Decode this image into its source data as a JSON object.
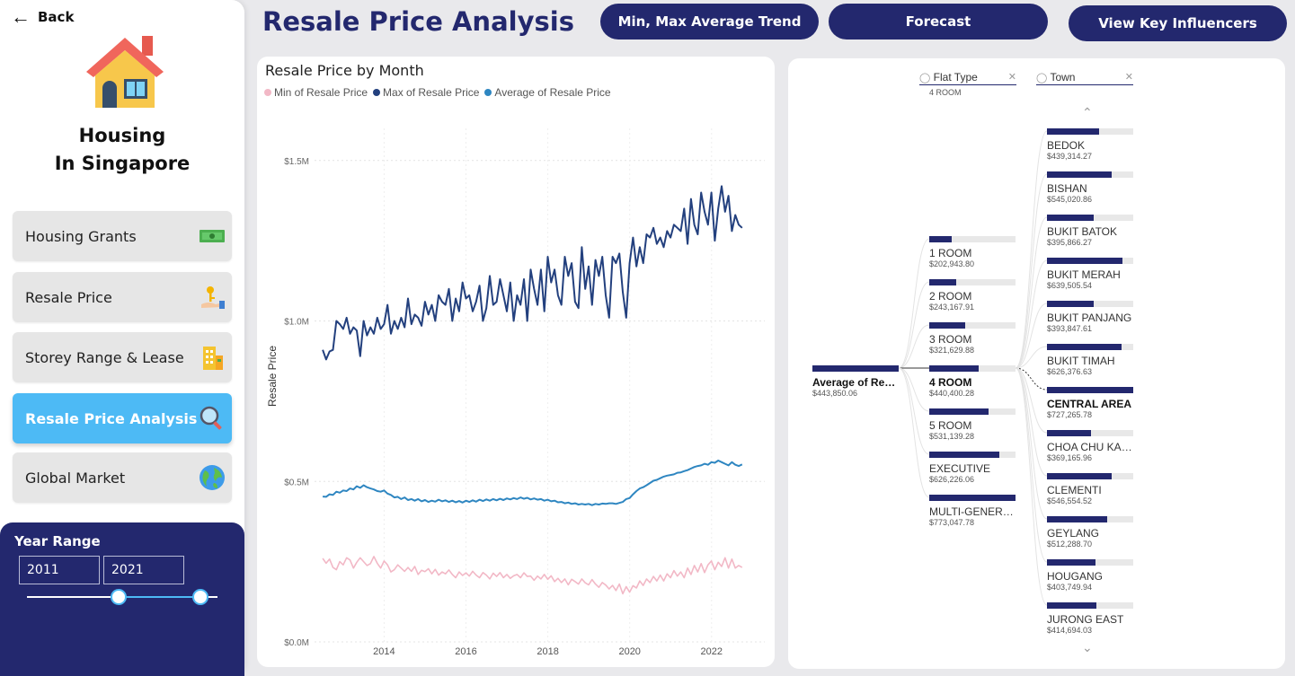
{
  "sidebar": {
    "back_label": "Back",
    "brand_line1": "Housing",
    "brand_line2": "In Singapore",
    "nav": [
      {
        "label": "Housing Grants",
        "icon": "money-icon"
      },
      {
        "label": "Resale Price",
        "icon": "key-hand-icon"
      },
      {
        "label": "Storey Range & Lease",
        "icon": "building-icon"
      },
      {
        "label": "Resale Price Analysis",
        "icon": "magnifier-icon",
        "active": true
      },
      {
        "label": "Global Market",
        "icon": "globe-icon"
      }
    ],
    "year_range": {
      "title": "Year Range",
      "from": "2011",
      "to": "2021"
    }
  },
  "header": {
    "title": "Resale Price Analysis",
    "buttons": [
      "Min, Max Average Trend",
      "Forecast",
      "View Key Influencers"
    ]
  },
  "chart_data": {
    "type": "line",
    "title": "Resale Price by Month",
    "ylabel": "Resale Price",
    "xlabel": "",
    "legend_position": "top-left",
    "ylim": [
      0,
      1600000
    ],
    "yticks": [
      {
        "v": 0,
        "label": "$0.0M"
      },
      {
        "v": 500000,
        "label": "$0.5M"
      },
      {
        "v": 1000000,
        "label": "$1.0M"
      },
      {
        "v": 1500000,
        "label": "$1.5M"
      }
    ],
    "xticks": [
      {
        "v": 2014,
        "label": "2014"
      },
      {
        "v": 2016,
        "label": "2016"
      },
      {
        "v": 2018,
        "label": "2018"
      },
      {
        "v": 2020,
        "label": "2020"
      },
      {
        "v": 2022,
        "label": "2022"
      }
    ],
    "xlim": [
      2012.3,
      2023.3
    ],
    "x_start": 2012.5,
    "x_step": 0.0833,
    "grid": true,
    "series": [
      {
        "name": "Min of Resale Price",
        "color": "#f2b8c6",
        "values": [
          260000,
          245000,
          258000,
          232000,
          225000,
          250000,
          240000,
          262000,
          255000,
          230000,
          248000,
          262000,
          250000,
          238000,
          244000,
          266000,
          245000,
          230000,
          252000,
          240000,
          218000,
          225000,
          240000,
          230000,
          220000,
          232000,
          220000,
          235000,
          210000,
          223000,
          219000,
          228000,
          212000,
          226000,
          208000,
          218000,
          212000,
          224000,
          210000,
          200000,
          218000,
          207000,
          215000,
          205000,
          220000,
          208000,
          200000,
          216000,
          208000,
          196000,
          214000,
          204000,
          216000,
          200000,
          210000,
          198000,
          206000,
          210000,
          200000,
          215000,
          204000,
          205000,
          192000,
          205000,
          196000,
          210000,
          195000,
          206000,
          188000,
          198000,
          185000,
          196000,
          178000,
          195000,
          188000,
          180000,
          196000,
          184000,
          178000,
          194000,
          180000,
          170000,
          185000,
          177000,
          165000,
          176000,
          160000,
          180000,
          150000,
          172000,
          155000,
          175000,
          168000,
          190000,
          176000,
          196000,
          185000,
          204000,
          190000,
          208000,
          190000,
          212000,
          200000,
          222000,
          205000,
          218000,
          200000,
          230000,
          210000,
          238000,
          218000,
          244000,
          216000,
          240000,
          252000,
          225000,
          248000,
          235000,
          262000,
          230000,
          258000,
          230000,
          238000,
          232000
        ]
      },
      {
        "name": "Max of Resale Price",
        "color": "#23407e",
        "values": [
          910000,
          880000,
          905000,
          910000,
          1000000,
          990000,
          975000,
          1010000,
          960000,
          980000,
          970000,
          890000,
          1000000,
          955000,
          980000,
          960000,
          1010000,
          975000,
          990000,
          1050000,
          960000,
          1000000,
          975000,
          1010000,
          980000,
          1070000,
          990000,
          1020000,
          1010000,
          985000,
          1060000,
          1020000,
          1050000,
          1000000,
          1080000,
          1060000,
          1050000,
          1100000,
          1000000,
          1070000,
          1030000,
          1120000,
          1070000,
          1080000,
          1030000,
          1060000,
          1110000,
          1000000,
          1040000,
          1140000,
          1050000,
          1060000,
          1130000,
          1080000,
          1030000,
          1120000,
          1000000,
          1080000,
          1050000,
          1130000,
          1000000,
          1160000,
          1100000,
          1050000,
          1160000,
          1030000,
          1200000,
          1120000,
          1160000,
          1080000,
          1050000,
          1200000,
          1140000,
          1180000,
          1060000,
          1040000,
          1230000,
          1100000,
          1170000,
          1050000,
          1190000,
          1140000,
          1200000,
          1080000,
          1010000,
          1200000,
          1180000,
          1210000,
          1090000,
          1010000,
          1180000,
          1260000,
          1170000,
          1230000,
          1180000,
          1270000,
          1260000,
          1290000,
          1240000,
          1260000,
          1230000,
          1280000,
          1260000,
          1300000,
          1290000,
          1280000,
          1350000,
          1240000,
          1380000,
          1300000,
          1270000,
          1400000,
          1340000,
          1300000,
          1400000,
          1250000,
          1350000,
          1420000,
          1340000,
          1390000,
          1280000,
          1330000,
          1300000,
          1290000
        ]
      },
      {
        "name": "Average of Resale Price",
        "color": "#2e86c1",
        "values": [
          453000,
          452000,
          460000,
          458000,
          468000,
          465000,
          472000,
          470000,
          478000,
          475000,
          485000,
          480000,
          488000,
          482000,
          478000,
          475000,
          470000,
          468000,
          472000,
          462000,
          458000,
          450000,
          452000,
          445000,
          450000,
          442000,
          445000,
          440000,
          445000,
          438000,
          442000,
          436000,
          440000,
          437000,
          443000,
          438000,
          441000,
          436000,
          440000,
          435000,
          439000,
          434000,
          440000,
          436000,
          441000,
          437000,
          443000,
          439000,
          444000,
          440000,
          445000,
          441000,
          446000,
          442000,
          447000,
          444000,
          448000,
          445000,
          450000,
          446000,
          449000,
          444000,
          447000,
          443000,
          445000,
          440000,
          443000,
          438000,
          440000,
          435000,
          436000,
          432000,
          434000,
          430000,
          432000,
          428000,
          430000,
          428000,
          430000,
          426000,
          430000,
          428000,
          431000,
          430000,
          432000,
          432000,
          430000,
          433000,
          436000,
          445000,
          448000,
          460000,
          470000,
          478000,
          482000,
          488000,
          495000,
          502000,
          505000,
          510000,
          515000,
          518000,
          520000,
          522000,
          527000,
          528000,
          532000,
          535000,
          540000,
          545000,
          548000,
          550000,
          555000,
          552000,
          560000,
          558000,
          565000,
          560000,
          555000,
          550000,
          560000,
          552000,
          548000,
          553000
        ]
      }
    ]
  },
  "tree": {
    "root": {
      "label": "Average of Res...",
      "value": "$443,850.06",
      "fill": 1.0
    },
    "level1": {
      "header": "Flat Type",
      "sub": "4 ROOM",
      "nodes": [
        {
          "label": "1 ROOM",
          "value": "$202,943.80",
          "fill": 0.26
        },
        {
          "label": "2 ROOM",
          "value": "$243,167.91",
          "fill": 0.31
        },
        {
          "label": "3 ROOM",
          "value": "$321,629.88",
          "fill": 0.42
        },
        {
          "label": "4 ROOM",
          "value": "$440,400.28",
          "fill": 0.57,
          "selected": true
        },
        {
          "label": "5 ROOM",
          "value": "$531,139.28",
          "fill": 0.69
        },
        {
          "label": "EXECUTIVE",
          "value": "$626,226.06",
          "fill": 0.81
        },
        {
          "label": "MULTI-GENERAT...",
          "value": "$773,047.78",
          "fill": 1.0
        }
      ]
    },
    "level2": {
      "header": "Town",
      "nodes": [
        {
          "label": "BEDOK",
          "value": "$439,314.27",
          "fill": 0.6
        },
        {
          "label": "BISHAN",
          "value": "$545,020.86",
          "fill": 0.75
        },
        {
          "label": "BUKIT BATOK",
          "value": "$395,866.27",
          "fill": 0.54
        },
        {
          "label": "BUKIT MERAH",
          "value": "$639,505.54",
          "fill": 0.88
        },
        {
          "label": "BUKIT PANJANG",
          "value": "$393,847.61",
          "fill": 0.54
        },
        {
          "label": "BUKIT TIMAH",
          "value": "$626,376.63",
          "fill": 0.86
        },
        {
          "label": "CENTRAL AREA",
          "value": "$727,265.78",
          "fill": 1.0,
          "selected": true
        },
        {
          "label": "CHOA CHU KANG",
          "value": "$369,165.96",
          "fill": 0.51
        },
        {
          "label": "CLEMENTI",
          "value": "$546,554.52",
          "fill": 0.75
        },
        {
          "label": "GEYLANG",
          "value": "$512,288.70",
          "fill": 0.7
        },
        {
          "label": "HOUGANG",
          "value": "$403,749.94",
          "fill": 0.56
        },
        {
          "label": "JURONG EAST",
          "value": "$414,694.03",
          "fill": 0.57
        }
      ]
    }
  },
  "colors": {
    "navy": "#23286e",
    "accent": "#4dbaf5",
    "min_series": "#f2b8c6",
    "max_series": "#23407e",
    "avg_series": "#2e86c1"
  }
}
